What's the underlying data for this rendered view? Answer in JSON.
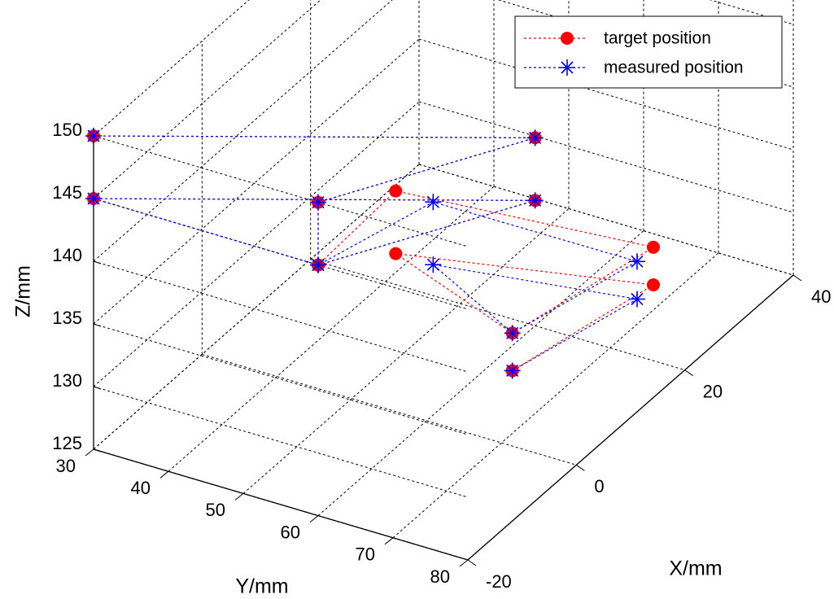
{
  "chart_data": {
    "type": "scatter",
    "projection": "3d",
    "xlabel": "X/mm",
    "ylabel": "Y/mm",
    "zlabel": "Z/mm",
    "xlim": [
      -20,
      40
    ],
    "ylim": [
      30,
      80
    ],
    "zlim": [
      125,
      150
    ],
    "xticks": [
      "-20",
      "0",
      "20",
      "40"
    ],
    "yticks": [
      "30",
      "40",
      "50",
      "60",
      "70",
      "80"
    ],
    "zticks": [
      "125",
      "130",
      "135",
      "140",
      "145",
      "150"
    ],
    "grid": true,
    "legend_position": "top-right",
    "series": [
      {
        "name": "target position",
        "color": "#ff0000",
        "marker": "filled-circle",
        "line": "dashed",
        "points": [
          {
            "x": -20,
            "y": 30,
            "z": 150
          },
          {
            "x": 20,
            "y": 60,
            "z": 140
          },
          {
            "x": -20,
            "y": 60,
            "z": 150
          },
          {
            "x": -20,
            "y": 60,
            "z": 145
          },
          {
            "x": -20,
            "y": 30,
            "z": 145
          },
          {
            "x": 20,
            "y": 60,
            "z": 135
          },
          {
            "x": -20,
            "y": 60,
            "z": 145
          },
          {
            "x": 15,
            "y": 45,
            "z": 135
          },
          {
            "x": 28,
            "y": 70,
            "z": 130
          },
          {
            "x": 2,
            "y": 70,
            "z": 133
          },
          {
            "x": 15,
            "y": 45,
            "z": 130
          },
          {
            "x": 28,
            "y": 70,
            "z": 127
          },
          {
            "x": 2,
            "y": 70,
            "z": 130
          }
        ]
      },
      {
        "name": "measured position",
        "color": "#0000ff",
        "marker": "asterisk",
        "line": "dashed",
        "points": [
          {
            "x": -20,
            "y": 30,
            "z": 150
          },
          {
            "x": 20,
            "y": 60,
            "z": 140
          },
          {
            "x": -20,
            "y": 60,
            "z": 150
          },
          {
            "x": -20,
            "y": 60,
            "z": 145
          },
          {
            "x": -20,
            "y": 30,
            "z": 145
          },
          {
            "x": 20,
            "y": 60,
            "z": 135
          },
          {
            "x": -20,
            "y": 60,
            "z": 145
          },
          {
            "x": 15,
            "y": 50,
            "z": 135
          },
          {
            "x": 25,
            "y": 70,
            "z": 130
          },
          {
            "x": 2,
            "y": 70,
            "z": 133
          },
          {
            "x": 15,
            "y": 50,
            "z": 130
          },
          {
            "x": 25,
            "y": 70,
            "z": 127
          },
          {
            "x": 2,
            "y": 70,
            "z": 130
          }
        ]
      }
    ]
  }
}
